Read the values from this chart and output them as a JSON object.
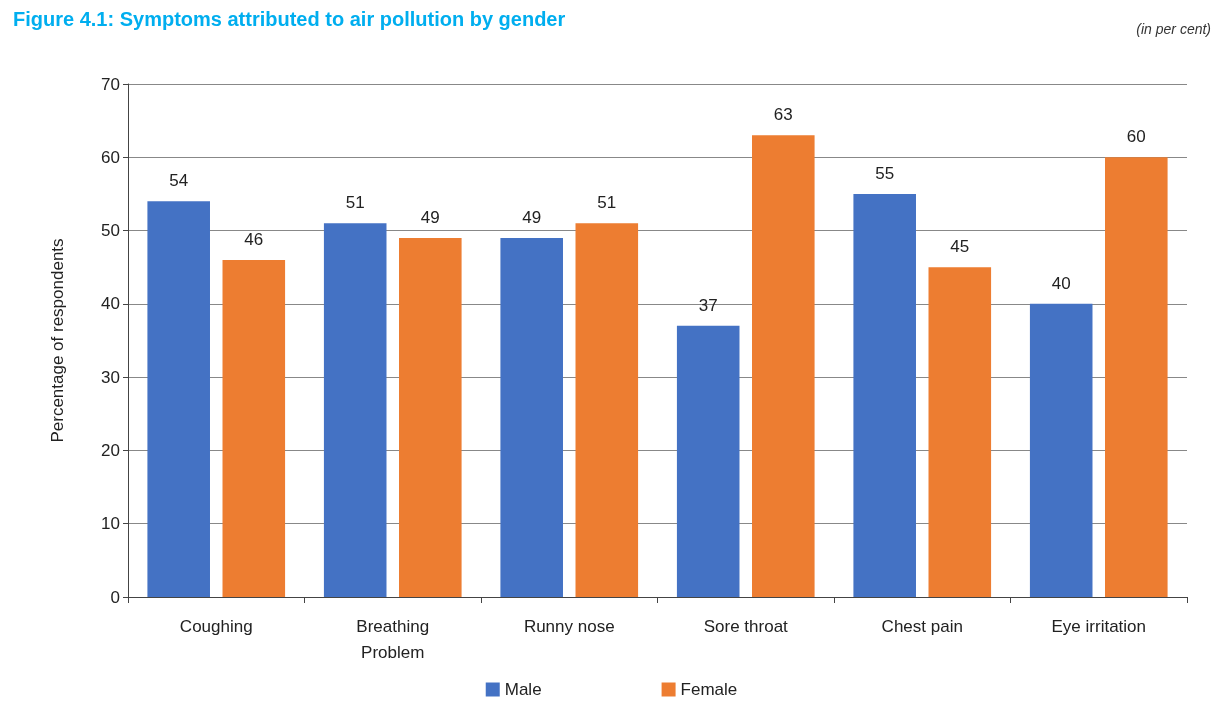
{
  "chart_data": {
    "type": "bar",
    "title": "Figure 4.1: Symptoms attributed to air pollution by gender",
    "annotations": [
      "(in per cent)"
    ],
    "ylabel": "Percentage of respondents",
    "categories": [
      "Coughing",
      "Breathing\nProblem",
      "Runny nose",
      "Sore throat",
      "Chest pain",
      "Eye irritation"
    ],
    "series": [
      {
        "name": "Male",
        "color": "#4472c4",
        "values": [
          54,
          51,
          49,
          37,
          55,
          40
        ]
      },
      {
        "name": "Female",
        "color": "#ed7d31",
        "values": [
          46,
          49,
          51,
          63,
          45,
          60
        ]
      }
    ],
    "ylim": [
      0,
      70
    ],
    "yticks": [
      0,
      10,
      20,
      30,
      40,
      50,
      60,
      70
    ],
    "grid": "y",
    "legend": "bottom",
    "data_labels": true
  }
}
